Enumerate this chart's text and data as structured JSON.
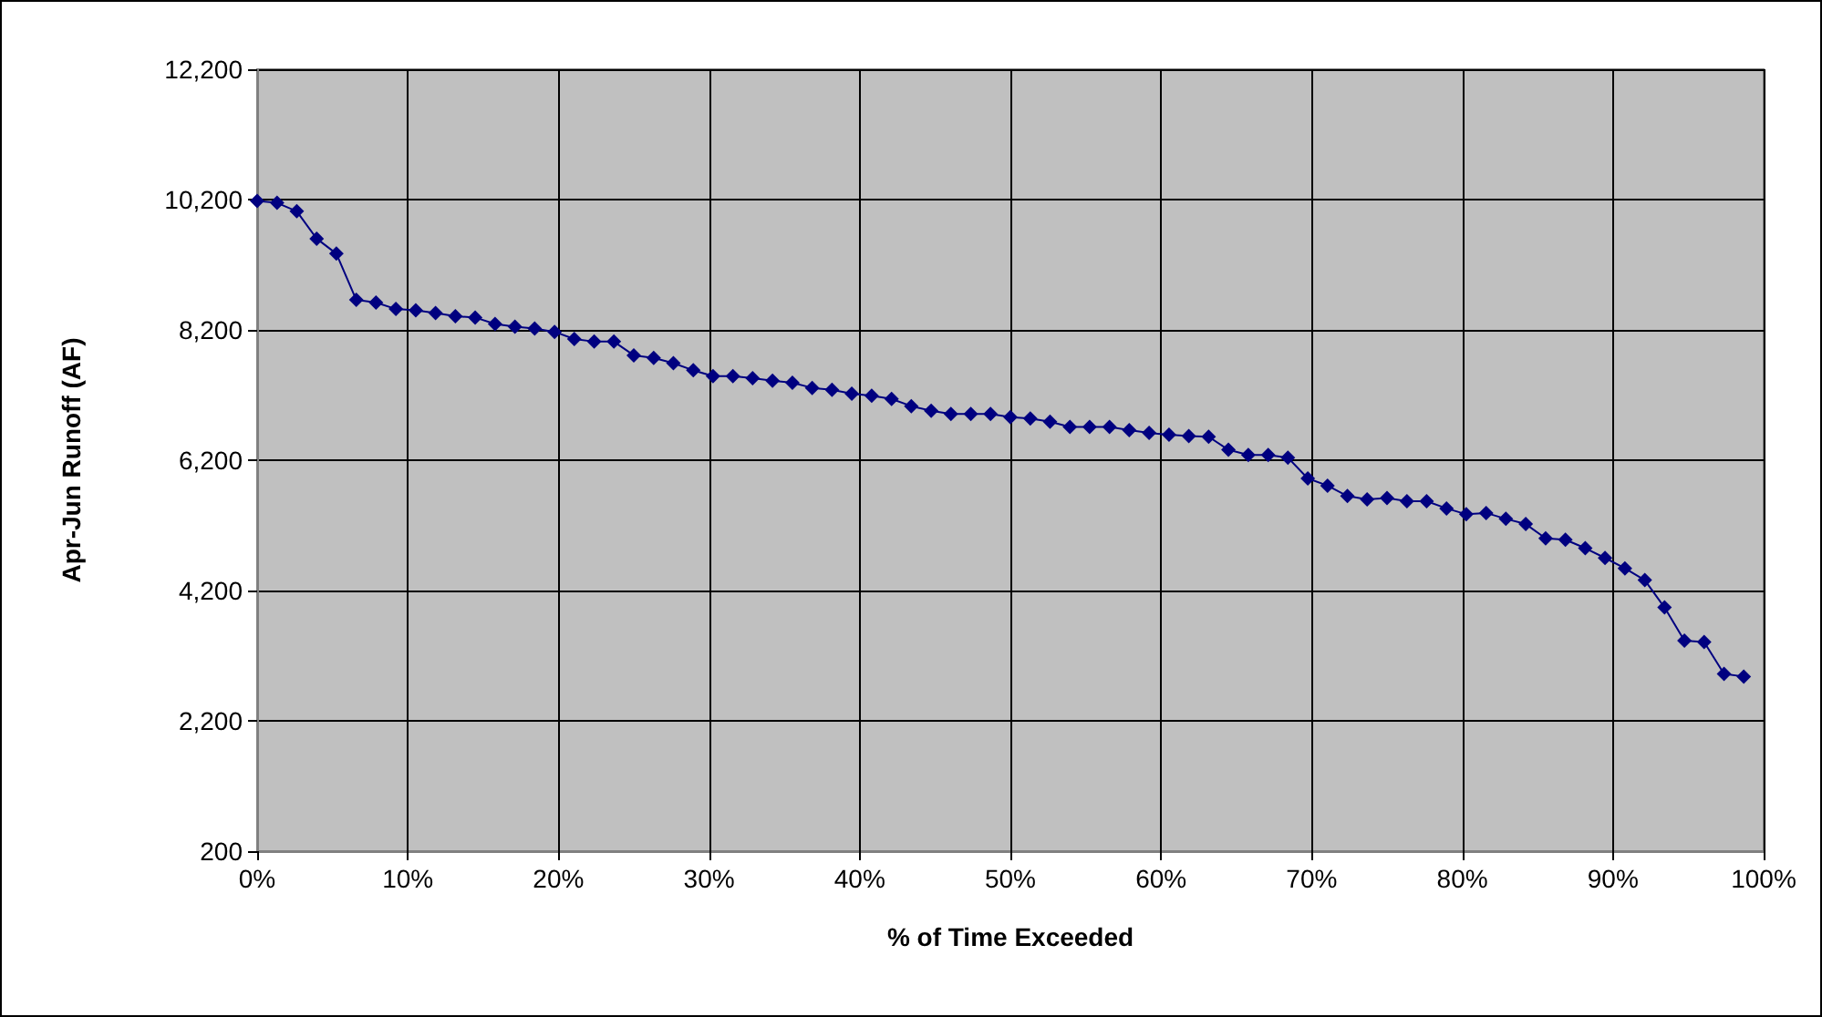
{
  "chart_data": {
    "type": "line",
    "xlabel": "% of Time Exceeded",
    "ylabel": "Apr-Jun Runoff (AF)",
    "x": [
      0,
      1.32,
      2.63,
      3.95,
      5.26,
      6.58,
      7.89,
      9.21,
      10.53,
      11.84,
      13.16,
      14.47,
      15.79,
      17.11,
      18.42,
      19.74,
      21.05,
      22.37,
      23.68,
      25,
      26.32,
      27.63,
      28.95,
      30.26,
      31.58,
      32.89,
      34.21,
      35.53,
      36.84,
      38.16,
      39.47,
      40.79,
      42.11,
      43.42,
      44.74,
      46.05,
      47.37,
      48.68,
      50,
      51.32,
      52.63,
      53.95,
      55.26,
      56.58,
      57.89,
      59.21,
      60.53,
      61.84,
      63.16,
      64.47,
      65.79,
      67.11,
      68.42,
      69.74,
      71.05,
      72.37,
      73.68,
      75,
      76.32,
      77.63,
      78.95,
      80.26,
      81.58,
      82.89,
      84.21,
      85.53,
      86.84,
      88.16,
      89.47,
      90.79,
      92.11,
      93.42,
      94.74,
      96.05,
      97.37,
      98.68
    ],
    "series": [
      {
        "color": "#000080",
        "values": [
          10180,
          10150,
          10020,
          9600,
          9370,
          8660,
          8620,
          8520,
          8500,
          8460,
          8410,
          8390,
          8290,
          8250,
          8220,
          8170,
          8060,
          8020,
          8020,
          7810,
          7770,
          7690,
          7580,
          7490,
          7490,
          7460,
          7420,
          7390,
          7310,
          7280,
          7220,
          7190,
          7140,
          7030,
          6960,
          6910,
          6910,
          6910,
          6860,
          6840,
          6790,
          6710,
          6710,
          6710,
          6660,
          6620,
          6590,
          6570,
          6560,
          6360,
          6280,
          6280,
          6240,
          5920,
          5810,
          5650,
          5600,
          5620,
          5570,
          5570,
          5460,
          5370,
          5390,
          5300,
          5220,
          5000,
          4980,
          4850,
          4700,
          4540,
          4360,
          3940,
          3430,
          3410,
          2920,
          2880
        ]
      }
    ],
    "xlim": [
      0,
      100
    ],
    "xticks": [
      {
        "value": 0,
        "label": "0%"
      },
      {
        "value": 10,
        "label": "10%"
      },
      {
        "value": 20,
        "label": "20%"
      },
      {
        "value": 30,
        "label": "30%"
      },
      {
        "value": 40,
        "label": "40%"
      },
      {
        "value": 50,
        "label": "50%"
      },
      {
        "value": 60,
        "label": "60%"
      },
      {
        "value": 70,
        "label": "70%"
      },
      {
        "value": 80,
        "label": "80%"
      },
      {
        "value": 90,
        "label": "90%"
      },
      {
        "value": 100,
        "label": "100%"
      }
    ],
    "ylim": [
      200,
      12200
    ],
    "yticks": [
      {
        "value": 200,
        "label": "200"
      },
      {
        "value": 2200,
        "label": "2,200"
      },
      {
        "value": 4200,
        "label": "4,200"
      },
      {
        "value": 6200,
        "label": "6,200"
      },
      {
        "value": 8200,
        "label": "8,200"
      },
      {
        "value": 10200,
        "label": "10,200"
      },
      {
        "value": 12200,
        "label": "12,200"
      }
    ],
    "grid": true,
    "marker": "diamond",
    "line_style": "solid"
  }
}
